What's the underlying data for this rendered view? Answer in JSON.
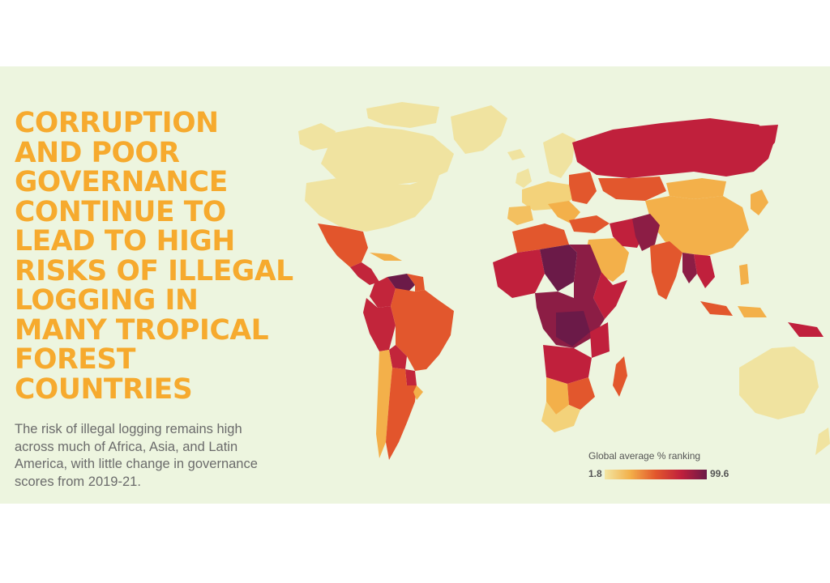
{
  "headline_lines": [
    "CORRUPTION",
    "AND POOR",
    "GOVERNANCE",
    "CONTINUE TO",
    "LEAD TO HIGH",
    "RISKS OF ILLEGAL",
    "LOGGING IN",
    "MANY TROPICAL",
    "FOREST",
    "COUNTRIES"
  ],
  "subtitle_lines": [
    "The risk of illegal logging remains high",
    "across much of Africa, Asia, and Latin",
    "America, with little change in governance",
    "scores from 2019-21."
  ],
  "legend": {
    "title": "Global average % ranking",
    "min_label": "1.8",
    "max_label": "99.6",
    "colors": [
      "#f3e6a3",
      "#f3b04a",
      "#e2572d",
      "#c0203c",
      "#6b1a48"
    ]
  },
  "colors": {
    "background": "#edf5df",
    "headline": "#f6aa2e",
    "body_text": "#6b6b6b"
  }
}
